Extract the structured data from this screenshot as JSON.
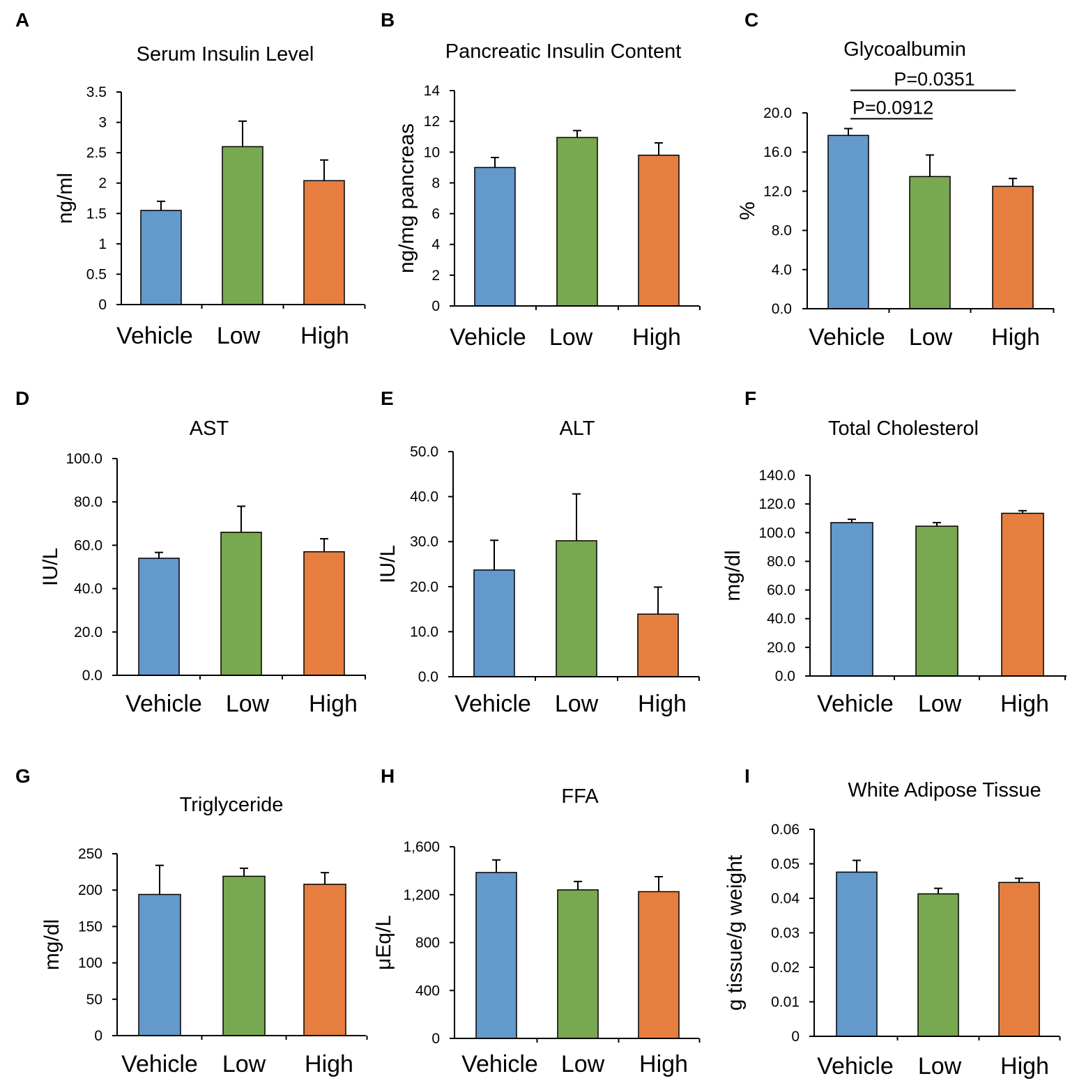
{
  "figure": {
    "colors": {
      "vehicle": "#6399CB",
      "low": "#78A84F",
      "high": "#E67E3F",
      "axis": "#000000"
    },
    "panels": [
      "A",
      "B",
      "C",
      "D",
      "E",
      "F",
      "G",
      "H",
      "I"
    ]
  },
  "chart_data": [
    {
      "panel": "A",
      "type": "bar",
      "title": "Serum Insulin Level",
      "ylabel": "ng/ml",
      "xlabel": "",
      "categories": [
        "Vehicle",
        "Low",
        "High"
      ],
      "values": [
        1.55,
        2.6,
        2.04
      ],
      "errors": [
        0.15,
        0.42,
        0.34
      ],
      "ylim": [
        0,
        3.5
      ],
      "yticks": [
        0,
        0.5,
        1,
        1.5,
        2,
        2.5,
        3,
        3.5
      ],
      "ytick_labels": [
        "0",
        "0.5",
        "1",
        "1.5",
        "2",
        "2.5",
        "3",
        "3.5"
      ],
      "annotations": []
    },
    {
      "panel": "B",
      "type": "bar",
      "title": "Pancreatic Insulin Content",
      "ylabel": "ng/mg pancreas",
      "xlabel": "",
      "categories": [
        "Vehicle",
        "Low",
        "High"
      ],
      "values": [
        9.0,
        10.95,
        9.8
      ],
      "errors": [
        0.65,
        0.45,
        0.8
      ],
      "ylim": [
        0,
        14
      ],
      "yticks": [
        0,
        2,
        4,
        6,
        8,
        10,
        12,
        14
      ],
      "ytick_labels": [
        "0",
        "2",
        "4",
        "6",
        "8",
        "10",
        "12",
        "14"
      ],
      "annotations": []
    },
    {
      "panel": "C",
      "type": "bar",
      "title": "Glycoalbumin",
      "ylabel": "%",
      "xlabel": "",
      "categories": [
        "Vehicle",
        "Low",
        "High"
      ],
      "values": [
        17.7,
        13.5,
        12.5
      ],
      "errors": [
        0.7,
        2.2,
        0.8
      ],
      "ylim": [
        0,
        20
      ],
      "yticks": [
        0,
        4,
        8,
        12,
        16,
        20
      ],
      "ytick_labels": [
        "0.0",
        "4.0",
        "8.0",
        "12.0",
        "16.0",
        "20.0"
      ],
      "annotations": [
        {
          "label": "P=0.0912",
          "from": 0,
          "to": 1,
          "y": 19.4
        },
        {
          "label": "P=0.0351",
          "from": 0,
          "to": 2,
          "y": 22.3
        }
      ]
    },
    {
      "panel": "D",
      "type": "bar",
      "title": "AST",
      "ylabel": "IU/L",
      "xlabel": "",
      "categories": [
        "Vehicle",
        "Low",
        "High"
      ],
      "values": [
        54.0,
        66.0,
        57.0
      ],
      "errors": [
        2.7,
        12.0,
        6.0
      ],
      "ylim": [
        0,
        100
      ],
      "yticks": [
        0,
        20,
        40,
        60,
        80,
        100
      ],
      "ytick_labels": [
        "0.0",
        "20.0",
        "40.0",
        "60.0",
        "80.0",
        "100.0"
      ],
      "annotations": []
    },
    {
      "panel": "E",
      "type": "bar",
      "title": "ALT",
      "ylabel": "IU/L",
      "xlabel": "",
      "categories": [
        "Vehicle",
        "Low",
        "High"
      ],
      "values": [
        23.7,
        30.2,
        13.9
      ],
      "errors": [
        6.6,
        10.4,
        6.0
      ],
      "ylim": [
        0,
        50
      ],
      "yticks": [
        0,
        10,
        20,
        30,
        40,
        50
      ],
      "ytick_labels": [
        "0.0",
        "10.0",
        "20.0",
        "30.0",
        "40.0",
        "50.0"
      ],
      "annotations": []
    },
    {
      "panel": "F",
      "type": "bar",
      "title": "Total Cholesterol",
      "ylabel": "mg/dl",
      "xlabel": "",
      "categories": [
        "Vehicle",
        "Low",
        "High"
      ],
      "values": [
        107.0,
        104.5,
        113.5
      ],
      "errors": [
        2.3,
        2.5,
        1.8
      ],
      "ylim": [
        0,
        140
      ],
      "yticks": [
        0,
        20,
        40,
        60,
        80,
        100,
        120,
        140
      ],
      "ytick_labels": [
        "0.0",
        "20.0",
        "40.0",
        "60.0",
        "80.0",
        "100.0",
        "120.0",
        "140.0"
      ],
      "annotations": []
    },
    {
      "panel": "G",
      "type": "bar",
      "title": "Triglyceride",
      "ylabel": "mg/dl",
      "xlabel": "",
      "categories": [
        "Vehicle",
        "Low",
        "High"
      ],
      "values": [
        194,
        219,
        208
      ],
      "errors": [
        40,
        11,
        16
      ],
      "ylim": [
        0,
        250
      ],
      "yticks": [
        0,
        50,
        100,
        150,
        200,
        250
      ],
      "ytick_labels": [
        "0",
        "50",
        "100",
        "150",
        "200",
        "250"
      ],
      "annotations": []
    },
    {
      "panel": "H",
      "type": "bar",
      "title": "FFA",
      "ylabel": "μEq/L",
      "xlabel": "",
      "categories": [
        "Vehicle",
        "Low",
        "High"
      ],
      "values": [
        1385,
        1240,
        1225
      ],
      "errors": [
        105,
        70,
        125
      ],
      "ylim": [
        0,
        1600
      ],
      "yticks": [
        0,
        400,
        800,
        1200,
        1600
      ],
      "ytick_labels": [
        "0",
        "400",
        "800",
        "1,200",
        "1,600"
      ],
      "annotations": []
    },
    {
      "panel": "I",
      "type": "bar",
      "title": "White Adipose Tissue",
      "ylabel": "g tissue/g weight",
      "xlabel": "",
      "categories": [
        "Vehicle",
        "Low",
        "High"
      ],
      "values": [
        0.0476,
        0.0413,
        0.0446
      ],
      "errors": [
        0.0034,
        0.0016,
        0.0012
      ],
      "ylim": [
        0,
        0.06
      ],
      "yticks": [
        0,
        0.01,
        0.02,
        0.03,
        0.04,
        0.05,
        0.06
      ],
      "ytick_labels": [
        "0",
        "0.01",
        "0.02",
        "0.03",
        "0.04",
        "0.05",
        "0.06"
      ],
      "annotations": []
    }
  ]
}
